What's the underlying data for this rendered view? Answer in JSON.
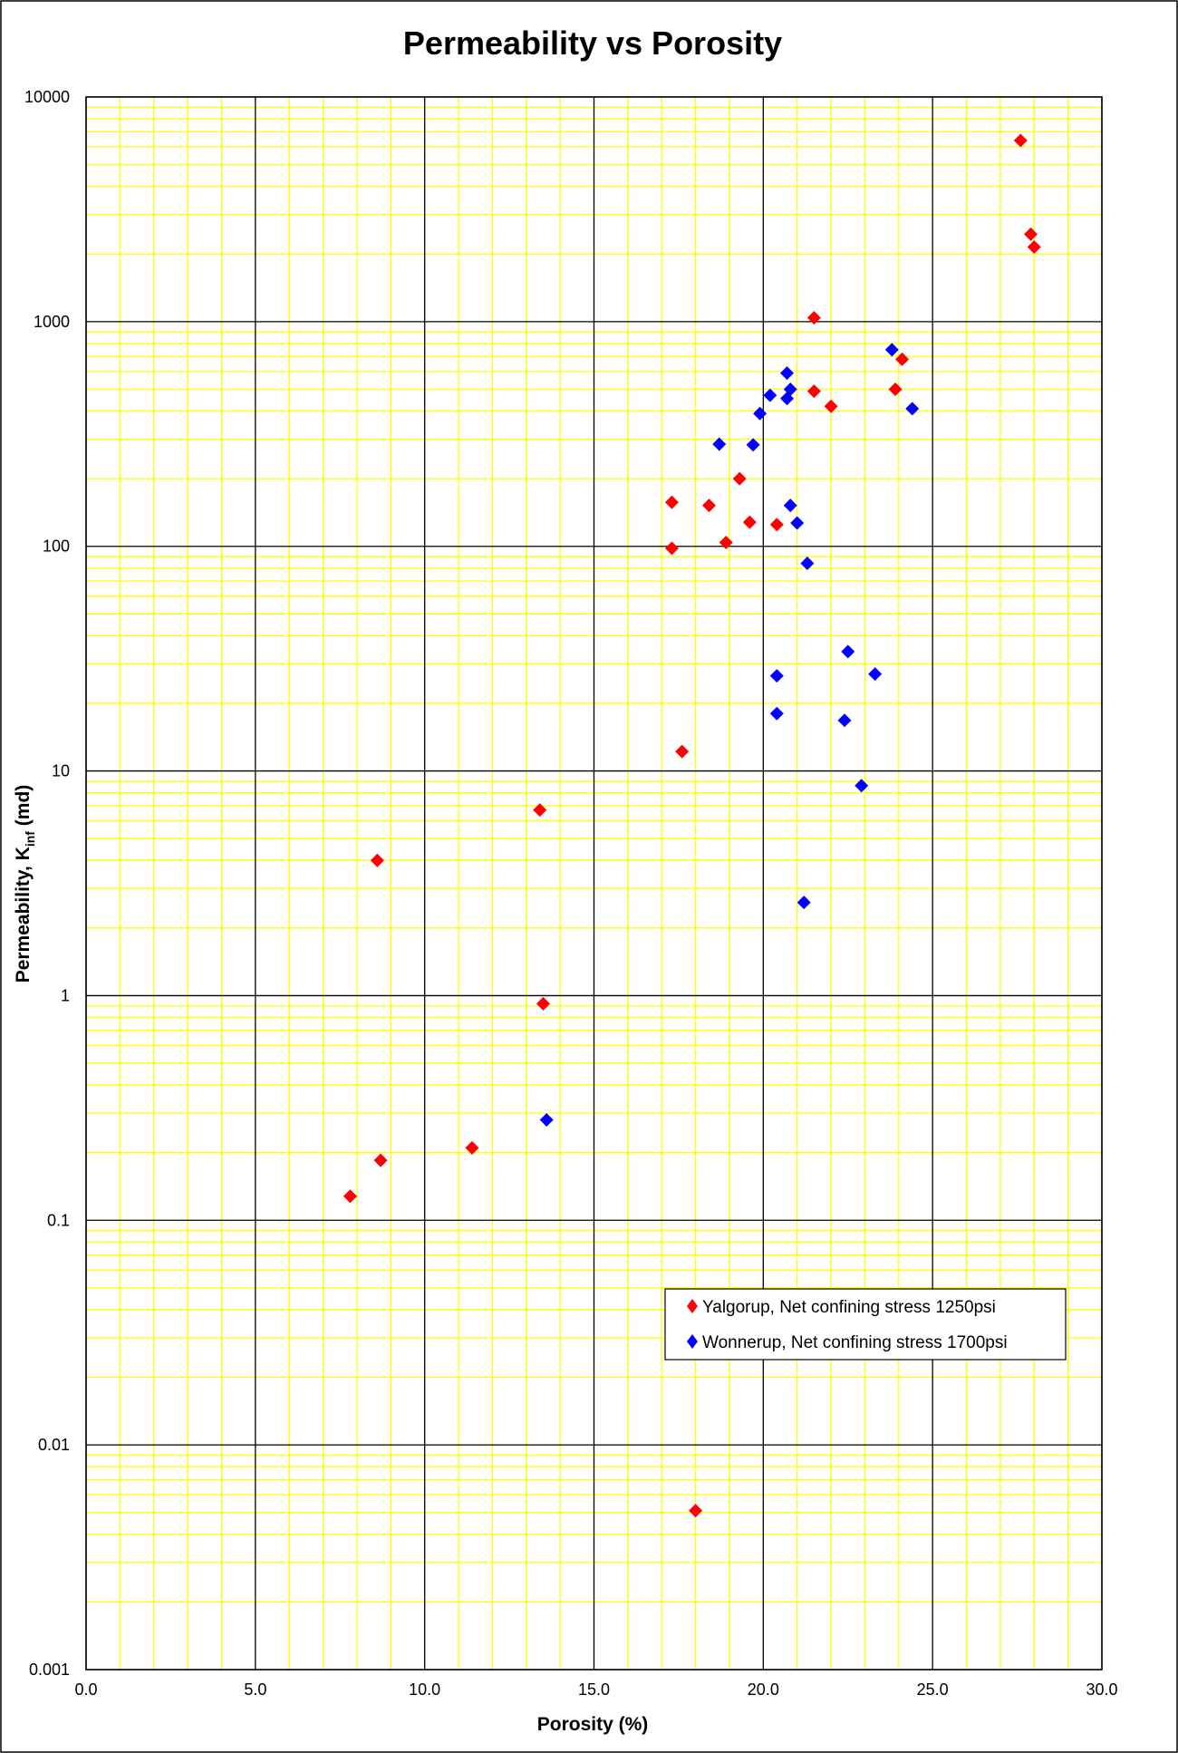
{
  "chart_data": {
    "type": "scatter",
    "title": "Permeability vs Porosity",
    "xlabel": "Porosity (%)",
    "ylabel": {
      "main": "Permeability, K",
      "subscript": "inf",
      "unit": " (md)"
    },
    "xlim": [
      0,
      30
    ],
    "ylim": [
      0.001,
      10000
    ],
    "yscale": "log",
    "x_ticks": [
      "0.0",
      "5.0",
      "10.0",
      "15.0",
      "20.0",
      "25.0",
      "30.0"
    ],
    "x_tick_values": [
      0,
      5,
      10,
      15,
      20,
      25,
      30
    ],
    "y_ticks": [
      "0.001",
      "0.01",
      "0.1",
      "1",
      "10",
      "100",
      "1000",
      "10000"
    ],
    "y_tick_values": [
      0.001,
      0.01,
      0.1,
      1,
      10,
      100,
      1000,
      10000
    ],
    "grid": true,
    "grid_colors": {
      "major": "#000000",
      "minor": "#ffff00"
    },
    "legend_position": "lower-right",
    "series": [
      {
        "name": "Yalgorup, Net confining stress 1250psi",
        "color": "#ff0000",
        "marker": "diamond",
        "points": [
          [
            27.6,
            6400
          ],
          [
            27.9,
            2450
          ],
          [
            28.0,
            2150
          ],
          [
            21.5,
            1040
          ],
          [
            24.1,
            680
          ],
          [
            23.9,
            500
          ],
          [
            21.5,
            490
          ],
          [
            22.0,
            420
          ],
          [
            19.3,
            200
          ],
          [
            17.3,
            157
          ],
          [
            18.4,
            152
          ],
          [
            19.6,
            128
          ],
          [
            20.4,
            125
          ],
          [
            18.9,
            104
          ],
          [
            17.3,
            98
          ],
          [
            17.6,
            12.2
          ],
          [
            13.4,
            6.7
          ],
          [
            8.6,
            4.0
          ],
          [
            13.5,
            0.92
          ],
          [
            11.4,
            0.21
          ],
          [
            8.7,
            0.185
          ],
          [
            7.8,
            0.128
          ],
          [
            18.0,
            0.0051
          ]
        ]
      },
      {
        "name": "Wonnerup, Net confining stress 1700psi",
        "color": "#0000ff",
        "marker": "diamond",
        "points": [
          [
            23.8,
            750
          ],
          [
            20.7,
            590
          ],
          [
            20.8,
            500
          ],
          [
            20.2,
            470
          ],
          [
            20.7,
            455
          ],
          [
            24.4,
            410
          ],
          [
            19.9,
            390
          ],
          [
            18.7,
            285
          ],
          [
            19.7,
            283
          ],
          [
            20.8,
            152
          ],
          [
            21.0,
            127
          ],
          [
            21.3,
            84
          ],
          [
            22.5,
            34
          ],
          [
            23.3,
            27
          ],
          [
            20.4,
            26.5
          ],
          [
            20.4,
            18
          ],
          [
            22.4,
            16.8
          ],
          [
            22.9,
            8.6
          ],
          [
            21.2,
            2.6
          ],
          [
            13.6,
            0.28
          ]
        ]
      }
    ]
  }
}
